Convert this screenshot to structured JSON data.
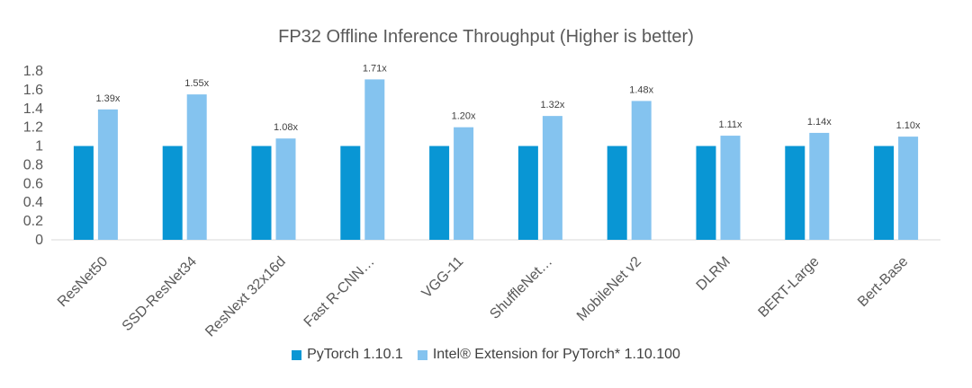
{
  "chart_data": {
    "type": "bar",
    "title": "FP32 Offline Inference Throughput (Higher is better)",
    "categories": [
      "ResNet50",
      "SSD-ResNet34",
      "ResNext 32x16d",
      "Fast R-CNN…",
      "VGG-11",
      "ShuffleNet…",
      "MobileNet v2",
      "DLRM",
      "BERT-Large",
      "Bert-Base"
    ],
    "series": [
      {
        "name": "PyTorch 1.10.1",
        "color": "#0996d4",
        "values": [
          1,
          1,
          1,
          1,
          1,
          1,
          1,
          1,
          1,
          1
        ]
      },
      {
        "name": "Intel® Extension for PyTorch* 1.10.100",
        "color": "#84c3ef",
        "values": [
          1.39,
          1.55,
          1.08,
          1.71,
          1.2,
          1.32,
          1.48,
          1.11,
          1.14,
          1.1
        ],
        "data_labels": [
          "1.39x",
          "1.55x",
          "1.08x",
          "1.71x",
          "1.20x",
          "1.32x",
          "1.48x",
          "1.11x",
          "1.14x",
          "1.10x"
        ]
      }
    ],
    "y_ticks": [
      "0",
      "0.2",
      "0.4",
      "0.6",
      "0.8",
      "1",
      "1.2",
      "1.4",
      "1.6",
      "1.8"
    ],
    "ylim": [
      0,
      1.8
    ],
    "grid": false,
    "legend": "bottom"
  }
}
